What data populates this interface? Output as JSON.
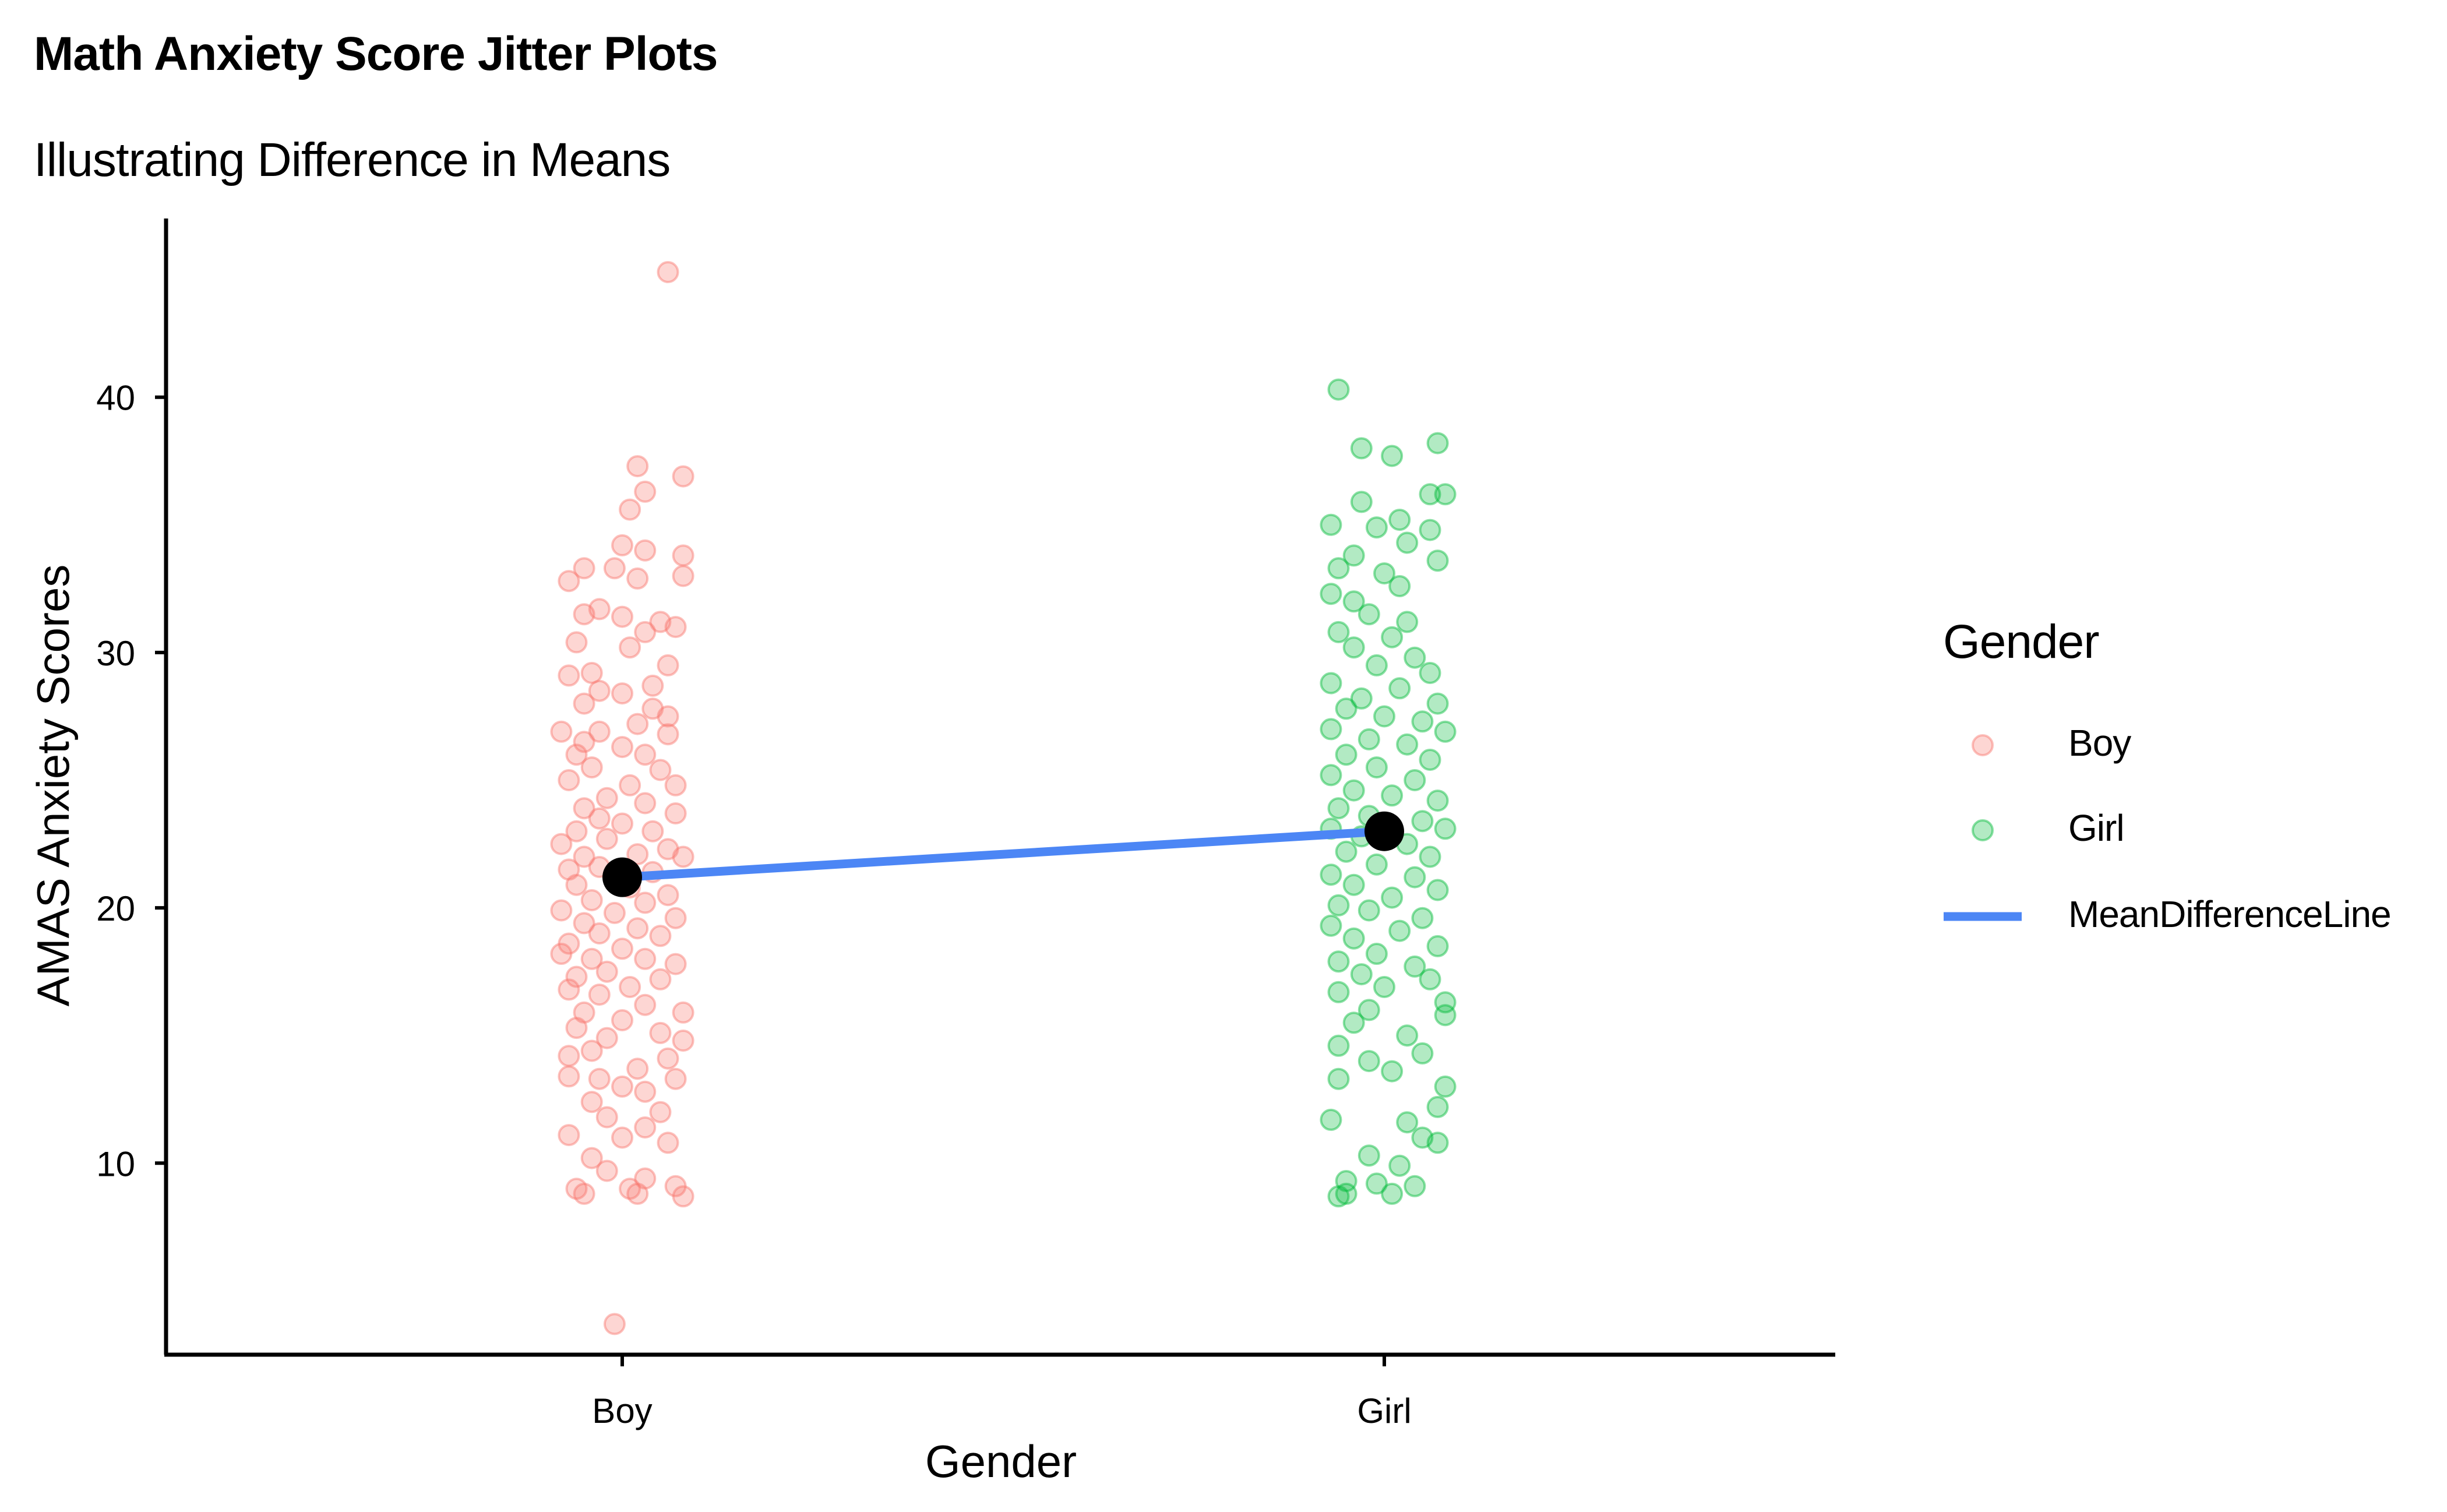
{
  "colors": {
    "boy": "#F8766D",
    "girl": "#00BA38",
    "mean_line": "#4C86F5",
    "mean_point": "#000000"
  },
  "chart_data": {
    "type": "scatter",
    "title": "Math Anxiety Score Jitter Plots",
    "subtitle": "Illustrating Difference in Means",
    "xlabel": "Gender",
    "ylabel": "AMAS Anxiety Scores",
    "categories": [
      "Boy",
      "Girl"
    ],
    "yticks": [
      10,
      20,
      30,
      40
    ],
    "ylim": [
      2.5,
      47
    ],
    "grid": false,
    "legend_position": "right",
    "legend": {
      "title": "Gender",
      "items": [
        {
          "label": "Boy",
          "kind": "point",
          "color": "#F8766D"
        },
        {
          "label": "Girl",
          "kind": "point",
          "color": "#00BA38"
        },
        {
          "label": "MeanDifferenceLine",
          "kind": "line",
          "color": "#4C86F5"
        }
      ]
    },
    "means": [
      {
        "category": "Boy",
        "value": 21.2
      },
      {
        "category": "Girl",
        "value": 23.0
      }
    ],
    "series": [
      {
        "name": "Boy",
        "color": "#F8766D",
        "points": [
          {
            "x": 1.06,
            "y": 44.9
          },
          {
            "x": 1.02,
            "y": 37.3
          },
          {
            "x": 1.08,
            "y": 36.9
          },
          {
            "x": 1.03,
            "y": 36.3
          },
          {
            "x": 1.01,
            "y": 35.6
          },
          {
            "x": 1.0,
            "y": 34.2
          },
          {
            "x": 1.03,
            "y": 34.0
          },
          {
            "x": 1.08,
            "y": 33.8
          },
          {
            "x": 0.95,
            "y": 33.3
          },
          {
            "x": 0.99,
            "y": 33.3
          },
          {
            "x": 1.08,
            "y": 33.0
          },
          {
            "x": 0.93,
            "y": 32.8
          },
          {
            "x": 1.02,
            "y": 32.9
          },
          {
            "x": 0.97,
            "y": 31.7
          },
          {
            "x": 0.95,
            "y": 31.5
          },
          {
            "x": 1.0,
            "y": 31.4
          },
          {
            "x": 1.05,
            "y": 31.2
          },
          {
            "x": 1.07,
            "y": 31.0
          },
          {
            "x": 1.03,
            "y": 30.8
          },
          {
            "x": 0.94,
            "y": 30.4
          },
          {
            "x": 1.01,
            "y": 30.2
          },
          {
            "x": 0.96,
            "y": 29.2
          },
          {
            "x": 1.06,
            "y": 29.5
          },
          {
            "x": 0.93,
            "y": 29.1
          },
          {
            "x": 1.04,
            "y": 28.7
          },
          {
            "x": 0.97,
            "y": 28.5
          },
          {
            "x": 1.0,
            "y": 28.4
          },
          {
            "x": 0.95,
            "y": 28.0
          },
          {
            "x": 1.04,
            "y": 27.8
          },
          {
            "x": 1.06,
            "y": 27.5
          },
          {
            "x": 1.02,
            "y": 27.2
          },
          {
            "x": 0.92,
            "y": 26.9
          },
          {
            "x": 0.97,
            "y": 26.9
          },
          {
            "x": 0.95,
            "y": 26.5
          },
          {
            "x": 1.06,
            "y": 26.8
          },
          {
            "x": 1.0,
            "y": 26.3
          },
          {
            "x": 0.94,
            "y": 26.0
          },
          {
            "x": 1.03,
            "y": 26.0
          },
          {
            "x": 0.96,
            "y": 25.5
          },
          {
            "x": 1.05,
            "y": 25.4
          },
          {
            "x": 0.93,
            "y": 25.0
          },
          {
            "x": 1.01,
            "y": 24.8
          },
          {
            "x": 1.07,
            "y": 24.8
          },
          {
            "x": 0.98,
            "y": 24.3
          },
          {
            "x": 1.03,
            "y": 24.1
          },
          {
            "x": 0.95,
            "y": 23.9
          },
          {
            "x": 1.07,
            "y": 23.7
          },
          {
            "x": 0.97,
            "y": 23.5
          },
          {
            "x": 1.0,
            "y": 23.3
          },
          {
            "x": 0.94,
            "y": 23.0
          },
          {
            "x": 1.04,
            "y": 23.0
          },
          {
            "x": 0.92,
            "y": 22.5
          },
          {
            "x": 0.98,
            "y": 22.7
          },
          {
            "x": 1.06,
            "y": 22.3
          },
          {
            "x": 0.95,
            "y": 22.0
          },
          {
            "x": 1.02,
            "y": 22.1
          },
          {
            "x": 1.08,
            "y": 22.0
          },
          {
            "x": 0.93,
            "y": 21.5
          },
          {
            "x": 0.97,
            "y": 21.6
          },
          {
            "x": 1.04,
            "y": 21.4
          },
          {
            "x": 0.94,
            "y": 20.9
          },
          {
            "x": 1.01,
            "y": 20.8
          },
          {
            "x": 1.06,
            "y": 20.5
          },
          {
            "x": 0.96,
            "y": 20.3
          },
          {
            "x": 1.03,
            "y": 20.2
          },
          {
            "x": 0.92,
            "y": 19.9
          },
          {
            "x": 0.99,
            "y": 19.8
          },
          {
            "x": 1.07,
            "y": 19.6
          },
          {
            "x": 0.95,
            "y": 19.4
          },
          {
            "x": 1.02,
            "y": 19.2
          },
          {
            "x": 0.97,
            "y": 19.0
          },
          {
            "x": 1.05,
            "y": 18.9
          },
          {
            "x": 0.93,
            "y": 18.6
          },
          {
            "x": 1.0,
            "y": 18.4
          },
          {
            "x": 0.92,
            "y": 18.2
          },
          {
            "x": 0.96,
            "y": 18.0
          },
          {
            "x": 1.03,
            "y": 18.0
          },
          {
            "x": 1.07,
            "y": 17.8
          },
          {
            "x": 0.98,
            "y": 17.5
          },
          {
            "x": 0.94,
            "y": 17.3
          },
          {
            "x": 1.05,
            "y": 17.2
          },
          {
            "x": 1.01,
            "y": 16.9
          },
          {
            "x": 0.93,
            "y": 16.8
          },
          {
            "x": 0.97,
            "y": 16.6
          },
          {
            "x": 1.03,
            "y": 16.2
          },
          {
            "x": 0.95,
            "y": 15.9
          },
          {
            "x": 1.08,
            "y": 15.9
          },
          {
            "x": 1.0,
            "y": 15.6
          },
          {
            "x": 0.94,
            "y": 15.3
          },
          {
            "x": 1.05,
            "y": 15.1
          },
          {
            "x": 0.98,
            "y": 14.9
          },
          {
            "x": 1.08,
            "y": 14.8
          },
          {
            "x": 0.96,
            "y": 14.4
          },
          {
            "x": 0.93,
            "y": 14.2
          },
          {
            "x": 1.06,
            "y": 14.1
          },
          {
            "x": 1.02,
            "y": 13.7
          },
          {
            "x": 0.93,
            "y": 13.4
          },
          {
            "x": 0.97,
            "y": 13.3
          },
          {
            "x": 1.07,
            "y": 13.3
          },
          {
            "x": 1.0,
            "y": 13.0
          },
          {
            "x": 1.03,
            "y": 12.8
          },
          {
            "x": 0.96,
            "y": 12.4
          },
          {
            "x": 1.05,
            "y": 12.0
          },
          {
            "x": 0.98,
            "y": 11.8
          },
          {
            "x": 1.03,
            "y": 11.4
          },
          {
            "x": 0.93,
            "y": 11.1
          },
          {
            "x": 1.0,
            "y": 11.0
          },
          {
            "x": 1.06,
            "y": 10.8
          },
          {
            "x": 0.96,
            "y": 10.2
          },
          {
            "x": 0.98,
            "y": 9.7
          },
          {
            "x": 1.03,
            "y": 9.4
          },
          {
            "x": 0.94,
            "y": 9.0
          },
          {
            "x": 1.01,
            "y": 9.0
          },
          {
            "x": 1.07,
            "y": 9.1
          },
          {
            "x": 0.95,
            "y": 8.8
          },
          {
            "x": 1.02,
            "y": 8.8
          },
          {
            "x": 1.08,
            "y": 8.7
          },
          {
            "x": 0.99,
            "y": 3.7
          }
        ]
      },
      {
        "name": "Girl",
        "color": "#00BA38",
        "points": [
          {
            "x": 1.94,
            "y": 40.3
          },
          {
            "x": 2.07,
            "y": 38.2
          },
          {
            "x": 1.97,
            "y": 38.0
          },
          {
            "x": 2.01,
            "y": 37.7
          },
          {
            "x": 2.06,
            "y": 36.2
          },
          {
            "x": 2.08,
            "y": 36.2
          },
          {
            "x": 1.97,
            "y": 35.9
          },
          {
            "x": 2.02,
            "y": 35.2
          },
          {
            "x": 1.93,
            "y": 35.0
          },
          {
            "x": 1.99,
            "y": 34.9
          },
          {
            "x": 2.06,
            "y": 34.8
          },
          {
            "x": 2.03,
            "y": 34.3
          },
          {
            "x": 1.96,
            "y": 33.8
          },
          {
            "x": 2.07,
            "y": 33.6
          },
          {
            "x": 1.94,
            "y": 33.3
          },
          {
            "x": 2.0,
            "y": 33.1
          },
          {
            "x": 2.02,
            "y": 32.6
          },
          {
            "x": 1.93,
            "y": 32.3
          },
          {
            "x": 1.96,
            "y": 32.0
          },
          {
            "x": 1.98,
            "y": 31.5
          },
          {
            "x": 2.03,
            "y": 31.2
          },
          {
            "x": 1.94,
            "y": 30.8
          },
          {
            "x": 2.01,
            "y": 30.6
          },
          {
            "x": 1.96,
            "y": 30.2
          },
          {
            "x": 2.04,
            "y": 29.8
          },
          {
            "x": 1.99,
            "y": 29.5
          },
          {
            "x": 2.06,
            "y": 29.2
          },
          {
            "x": 1.93,
            "y": 28.8
          },
          {
            "x": 2.02,
            "y": 28.6
          },
          {
            "x": 1.97,
            "y": 28.2
          },
          {
            "x": 2.07,
            "y": 28.0
          },
          {
            "x": 1.95,
            "y": 27.8
          },
          {
            "x": 2.0,
            "y": 27.5
          },
          {
            "x": 2.05,
            "y": 27.3
          },
          {
            "x": 1.93,
            "y": 27.0
          },
          {
            "x": 2.08,
            "y": 26.9
          },
          {
            "x": 1.98,
            "y": 26.6
          },
          {
            "x": 2.03,
            "y": 26.4
          },
          {
            "x": 1.95,
            "y": 26.0
          },
          {
            "x": 2.06,
            "y": 25.8
          },
          {
            "x": 1.99,
            "y": 25.5
          },
          {
            "x": 1.93,
            "y": 25.2
          },
          {
            "x": 2.04,
            "y": 25.0
          },
          {
            "x": 1.96,
            "y": 24.6
          },
          {
            "x": 2.01,
            "y": 24.4
          },
          {
            "x": 2.07,
            "y": 24.2
          },
          {
            "x": 1.94,
            "y": 23.9
          },
          {
            "x": 1.98,
            "y": 23.6
          },
          {
            "x": 2.05,
            "y": 23.4
          },
          {
            "x": 1.93,
            "y": 23.1
          },
          {
            "x": 2.08,
            "y": 23.1
          },
          {
            "x": 1.97,
            "y": 22.8
          },
          {
            "x": 2.03,
            "y": 22.5
          },
          {
            "x": 1.95,
            "y": 22.2
          },
          {
            "x": 2.06,
            "y": 22.0
          },
          {
            "x": 1.99,
            "y": 21.7
          },
          {
            "x": 1.93,
            "y": 21.3
          },
          {
            "x": 2.04,
            "y": 21.2
          },
          {
            "x": 1.96,
            "y": 20.9
          },
          {
            "x": 2.07,
            "y": 20.7
          },
          {
            "x": 2.01,
            "y": 20.4
          },
          {
            "x": 1.94,
            "y": 20.1
          },
          {
            "x": 1.98,
            "y": 19.9
          },
          {
            "x": 2.05,
            "y": 19.6
          },
          {
            "x": 1.93,
            "y": 19.3
          },
          {
            "x": 2.02,
            "y": 19.1
          },
          {
            "x": 1.96,
            "y": 18.8
          },
          {
            "x": 2.07,
            "y": 18.5
          },
          {
            "x": 1.99,
            "y": 18.2
          },
          {
            "x": 1.94,
            "y": 17.9
          },
          {
            "x": 2.04,
            "y": 17.7
          },
          {
            "x": 1.97,
            "y": 17.4
          },
          {
            "x": 2.06,
            "y": 17.2
          },
          {
            "x": 2.0,
            "y": 16.9
          },
          {
            "x": 1.94,
            "y": 16.7
          },
          {
            "x": 2.08,
            "y": 16.3
          },
          {
            "x": 1.98,
            "y": 16.0
          },
          {
            "x": 2.08,
            "y": 15.8
          },
          {
            "x": 1.96,
            "y": 15.5
          },
          {
            "x": 2.03,
            "y": 15.0
          },
          {
            "x": 1.94,
            "y": 14.6
          },
          {
            "x": 2.05,
            "y": 14.3
          },
          {
            "x": 1.98,
            "y": 14.0
          },
          {
            "x": 1.94,
            "y": 13.3
          },
          {
            "x": 2.01,
            "y": 13.6
          },
          {
            "x": 2.08,
            "y": 13.0
          },
          {
            "x": 2.07,
            "y": 12.2
          },
          {
            "x": 1.93,
            "y": 11.7
          },
          {
            "x": 2.03,
            "y": 11.6
          },
          {
            "x": 2.05,
            "y": 11.0
          },
          {
            "x": 2.07,
            "y": 10.8
          },
          {
            "x": 1.98,
            "y": 10.3
          },
          {
            "x": 2.02,
            "y": 9.9
          },
          {
            "x": 1.95,
            "y": 9.3
          },
          {
            "x": 1.99,
            "y": 9.2
          },
          {
            "x": 2.04,
            "y": 9.1
          },
          {
            "x": 1.95,
            "y": 8.8
          },
          {
            "x": 2.01,
            "y": 8.8
          },
          {
            "x": 1.94,
            "y": 8.7
          }
        ]
      }
    ]
  }
}
